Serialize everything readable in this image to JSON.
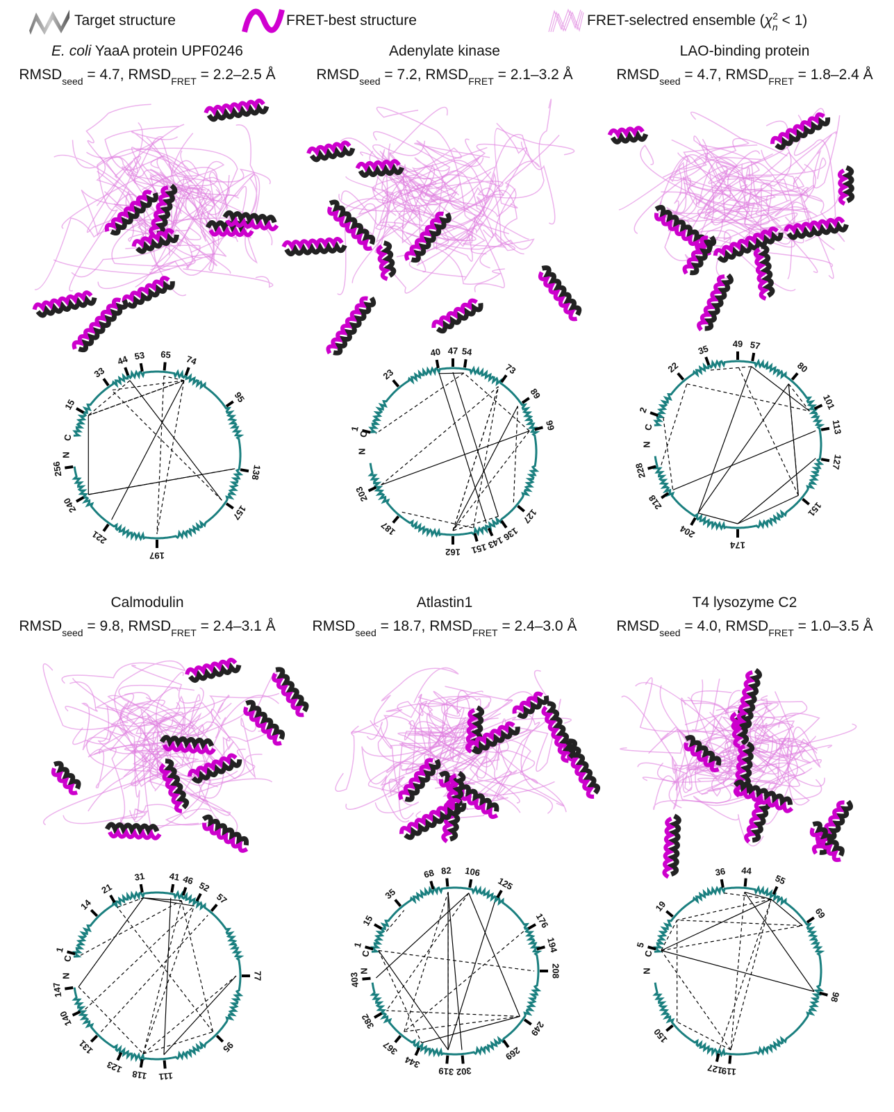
{
  "legend": [
    [
      {
        "text": "Target structure"
      }
    ],
    [
      {
        "text": "FRET-best structure"
      }
    ],
    [
      {
        "text": "FRET-selectred ensemble ("
      },
      {
        "text": "χ",
        "style": "italic"
      },
      {
        "text": "2",
        "style": "sup"
      },
      {
        "text": "n",
        "style": "sub-italic"
      },
      {
        "text": " < 1)"
      }
    ]
  ],
  "panels": [
    {
      "title": [
        {
          "text": "E. coli",
          "style": "italic"
        },
        {
          "text": " YaaA protein UPF0246"
        }
      ],
      "rmsd": [
        {
          "text": "RMSD"
        },
        {
          "text": "seed",
          "style": "sub"
        },
        {
          "text": " = 4.7, RMSD"
        },
        {
          "text": "FRET",
          "style": "sub"
        },
        {
          "text": " = 2.2–2.5 Å"
        }
      ],
      "residues": [
        15,
        33,
        44,
        53,
        65,
        74,
        95,
        138,
        157,
        197,
        221,
        240,
        256
      ],
      "termini": [
        "N",
        "C"
      ]
    },
    {
      "title": [
        {
          "text": "Adenylate kinase"
        }
      ],
      "rmsd": [
        {
          "text": "RMSD"
        },
        {
          "text": "seed",
          "style": "sub"
        },
        {
          "text": " = 7.2, RMSD"
        },
        {
          "text": "FRET",
          "style": "sub"
        },
        {
          "text": " = 2.1–3.2 Å"
        }
      ],
      "residues": [
        1,
        23,
        40,
        47,
        54,
        73,
        89,
        99,
        127,
        136,
        143,
        151,
        162,
        187,
        203
      ],
      "termini": [
        "N",
        "C"
      ]
    },
    {
      "title": [
        {
          "text": "LAO-binding protein"
        }
      ],
      "rmsd": [
        {
          "text": "RMSD"
        },
        {
          "text": "seed",
          "style": "sub"
        },
        {
          "text": " = 4.7, RMSD"
        },
        {
          "text": "FRET",
          "style": "sub"
        },
        {
          "text": " = 1.8–2.4 Å"
        }
      ],
      "residues": [
        2,
        22,
        35,
        49,
        57,
        80,
        101,
        113,
        127,
        151,
        174,
        204,
        218,
        228
      ],
      "termini": [
        "N",
        "C"
      ]
    },
    {
      "title": [
        {
          "text": "Calmodulin"
        }
      ],
      "rmsd": [
        {
          "text": "RMSD"
        },
        {
          "text": "seed",
          "style": "sub"
        },
        {
          "text": " = 9.8, RMSD"
        },
        {
          "text": "FRET",
          "style": "sub"
        },
        {
          "text": " = 2.4–3.1 Å"
        }
      ],
      "residues": [
        1,
        14,
        21,
        31,
        41,
        46,
        52,
        57,
        77,
        95,
        111,
        118,
        123,
        131,
        140,
        147
      ],
      "termini": [
        "N",
        "C"
      ]
    },
    {
      "title": [
        {
          "text": "Atlastin1"
        }
      ],
      "rmsd": [
        {
          "text": "RMSD"
        },
        {
          "text": "seed",
          "style": "sub"
        },
        {
          "text": " = 18.7, RMSD"
        },
        {
          "text": "FRET",
          "style": "sub"
        },
        {
          "text": " = 2.4–3.0 Å"
        }
      ],
      "residues": [
        1,
        15,
        35,
        68,
        82,
        106,
        125,
        176,
        194,
        208,
        249,
        269,
        302,
        319,
        344,
        367,
        382,
        403
      ],
      "termini": [
        "N",
        "C"
      ]
    },
    {
      "title": [
        {
          "text": "T4 lysozyme C2"
        }
      ],
      "rmsd": [
        {
          "text": "RMSD"
        },
        {
          "text": "seed",
          "style": "sub"
        },
        {
          "text": " = 4.0, RMSD"
        },
        {
          "text": "FRET",
          "style": "sub"
        },
        {
          "text": " = 1.0–3.5 Å"
        }
      ],
      "residues": [
        5,
        19,
        36,
        44,
        55,
        69,
        98,
        119,
        127,
        150
      ],
      "termini": [
        "N",
        "C"
      ]
    }
  ]
}
